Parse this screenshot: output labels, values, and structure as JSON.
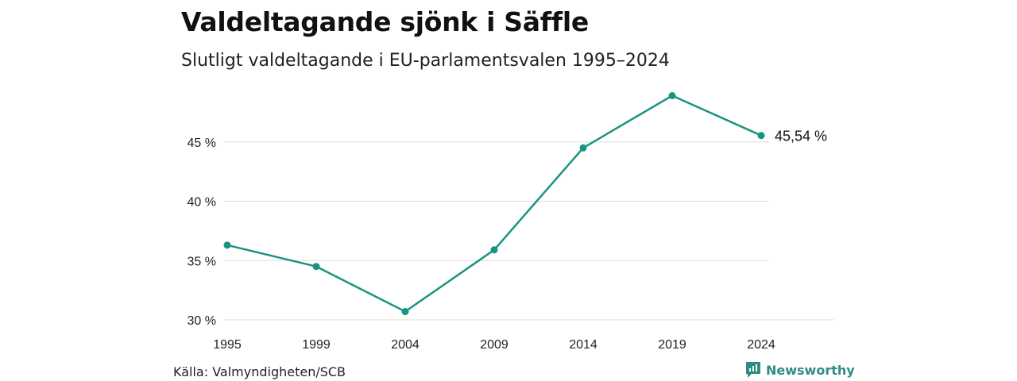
{
  "title": "Valdeltagande sjönk i Säffle",
  "subtitle": "Slutligt valdeltagande i EU-parlamentsvalen 1995–2024",
  "source": "Källa: Valmyndigheten/SCB",
  "brand": {
    "name": "Newsworthy",
    "icon": "newsworthy-logo-icon"
  },
  "colors": {
    "line": "#1a9482",
    "grid": "#dddddd",
    "text": "#222222",
    "brand": "#2f8c80"
  },
  "chart_data": {
    "type": "line",
    "x": [
      "1995",
      "1999",
      "2004",
      "2009",
      "2014",
      "2019",
      "2024"
    ],
    "series": [
      {
        "values": [
          36.3,
          34.5,
          30.7,
          35.9,
          44.5,
          48.9,
          45.54
        ]
      }
    ],
    "yticks": [
      30,
      35,
      40,
      45
    ],
    "ytick_labels": [
      "30 %",
      "35 %",
      "40 %",
      "45 %"
    ],
    "ylim": [
      30,
      49
    ],
    "last_value_label": "45,54 %",
    "grid": true,
    "xlabel": "",
    "ylabel": ""
  }
}
